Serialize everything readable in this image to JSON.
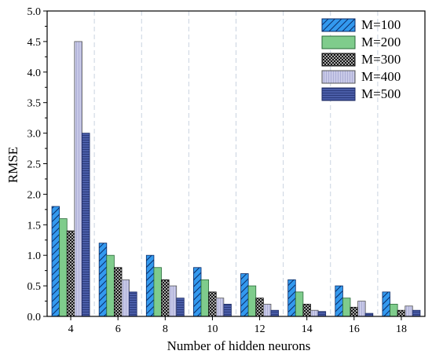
{
  "chart_data": {
    "type": "bar",
    "xlabel": "Number of hidden neurons",
    "ylabel": "RMSE",
    "ylim": [
      0,
      5.0
    ],
    "yticks": [
      "0.0",
      "0.5",
      "1.0",
      "1.5",
      "2.0",
      "2.5",
      "3.0",
      "3.5",
      "4.0",
      "4.5",
      "5.0"
    ],
    "categories": [
      "4",
      "6",
      "8",
      "10",
      "12",
      "14",
      "16",
      "18"
    ],
    "grid": "vertical dashed between categories",
    "legend_position": "top-right",
    "series": [
      {
        "name": "M=100",
        "pattern": "diagonal-hatch-blue",
        "color": "#3399ee",
        "values": [
          1.8,
          1.2,
          1.0,
          0.8,
          0.7,
          0.6,
          0.5,
          0.4
        ]
      },
      {
        "name": "M=200",
        "pattern": "solid-green",
        "color": "#7fcc8c",
        "values": [
          1.6,
          1.0,
          0.8,
          0.6,
          0.5,
          0.4,
          0.3,
          0.2
        ]
      },
      {
        "name": "M=300",
        "pattern": "crosshatch-black",
        "color": "#222222",
        "values": [
          1.4,
          0.8,
          0.6,
          0.4,
          0.3,
          0.2,
          0.15,
          0.1
        ]
      },
      {
        "name": "M=400",
        "pattern": "vertical-lines-lavender",
        "color": "#c7c8e6",
        "values": [
          4.5,
          0.6,
          0.5,
          0.3,
          0.2,
          0.1,
          0.25,
          0.17
        ]
      },
      {
        "name": "M=500",
        "pattern": "horizontal-lines-navy",
        "color": "#4a5da8",
        "values": [
          3.0,
          0.4,
          0.3,
          0.2,
          0.1,
          0.08,
          0.05,
          0.1
        ]
      }
    ]
  }
}
